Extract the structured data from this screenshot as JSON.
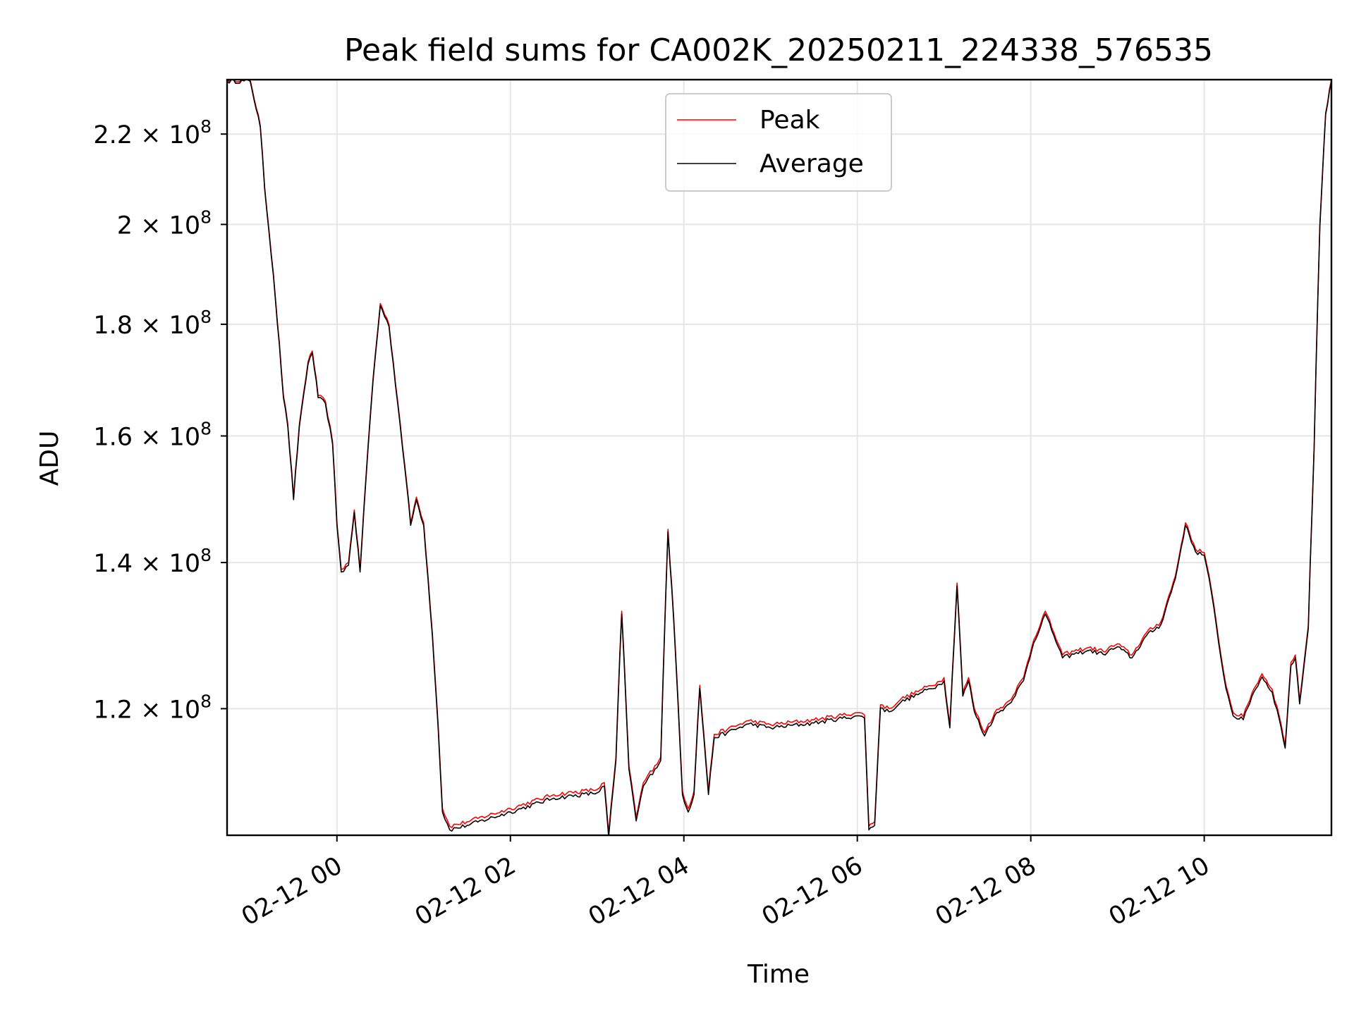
{
  "chart_data": {
    "type": "line",
    "title": "Peak field sums for CA002K_20250211_224338_576535",
    "xlabel": "Time",
    "ylabel": "ADU",
    "yscale": "log",
    "grid": true,
    "legend_placement": "upper-center",
    "xlim": [
      "2025-02-11T22:44",
      "2025-02-12T11:28"
    ],
    "ylim": [
      105000000,
      233000000
    ],
    "x_ticks": [
      {
        "value": "2025-02-12T00:00",
        "label": "02-12 00"
      },
      {
        "value": "2025-02-12T02:00",
        "label": "02-12 02"
      },
      {
        "value": "2025-02-12T04:00",
        "label": "02-12 04"
      },
      {
        "value": "2025-02-12T06:00",
        "label": "02-12 06"
      },
      {
        "value": "2025-02-12T08:00",
        "label": "02-12 08"
      },
      {
        "value": "2025-02-12T10:00",
        "label": "02-12 10"
      }
    ],
    "y_ticks": [
      {
        "value": 120000000,
        "base": "1.2",
        "exp": "8"
      },
      {
        "value": 140000000,
        "base": "1.4",
        "exp": "8"
      },
      {
        "value": 160000000,
        "base": "1.6",
        "exp": "8"
      },
      {
        "value": 180000000,
        "base": "1.8",
        "exp": "8"
      },
      {
        "value": 200000000,
        "base": "2",
        "exp": "8"
      },
      {
        "value": 220000000,
        "base": "2.2",
        "exp": "8"
      }
    ],
    "series": [
      {
        "name": "Peak",
        "color": "#ff0000",
        "offset": 400000,
        "points": [
          [
            "2025-02-11T22:44",
            233000000
          ],
          [
            "2025-02-11T23:00",
            233000000
          ],
          [
            "2025-02-11T23:07",
            222000000
          ],
          [
            "2025-02-11T23:10",
            208000000
          ],
          [
            "2025-02-11T23:16",
            190000000
          ],
          [
            "2025-02-11T23:23",
            167000000
          ],
          [
            "2025-02-11T23:26",
            162000000
          ],
          [
            "2025-02-11T23:30",
            150000000
          ],
          [
            "2025-02-11T23:34",
            162000000
          ],
          [
            "2025-02-11T23:40",
            173000000
          ],
          [
            "2025-02-11T23:43",
            175000000
          ],
          [
            "2025-02-11T23:47",
            167000000
          ],
          [
            "2025-02-11T23:52",
            166000000
          ],
          [
            "2025-02-11T23:57",
            159000000
          ],
          [
            "2025-02-12T00:00",
            146000000
          ],
          [
            "2025-02-12T00:03",
            139000000
          ],
          [
            "2025-02-12T00:08",
            140000000
          ],
          [
            "2025-02-12T00:12",
            148000000
          ],
          [
            "2025-02-12T00:16",
            139000000
          ],
          [
            "2025-02-12T00:20",
            153000000
          ],
          [
            "2025-02-12T00:25",
            170000000
          ],
          [
            "2025-02-12T00:30",
            184000000
          ],
          [
            "2025-02-12T00:36",
            180000000
          ],
          [
            "2025-02-12T00:42",
            166000000
          ],
          [
            "2025-02-12T00:47",
            155000000
          ],
          [
            "2025-02-12T00:51",
            146000000
          ],
          [
            "2025-02-12T00:55",
            150000000
          ],
          [
            "2025-02-12T01:00",
            146000000
          ],
          [
            "2025-02-12T01:06",
            130000000
          ],
          [
            "2025-02-12T01:10",
            118000000
          ],
          [
            "2025-02-12T01:13",
            108000000
          ],
          [
            "2025-02-12T01:18",
            106000000
          ],
          [
            "2025-02-12T01:30",
            106500000
          ],
          [
            "2025-02-12T02:00",
            108000000
          ],
          [
            "2025-02-12T02:30",
            109600000
          ],
          [
            "2025-02-12T03:00",
            110200000
          ],
          [
            "2025-02-12T03:05",
            111000000
          ],
          [
            "2025-02-12T03:08",
            105200000
          ],
          [
            "2025-02-12T03:13",
            114000000
          ],
          [
            "2025-02-12T03:17",
            133000000
          ],
          [
            "2025-02-12T03:22",
            113000000
          ],
          [
            "2025-02-12T03:27",
            107000000
          ],
          [
            "2025-02-12T03:32",
            111000000
          ],
          [
            "2025-02-12T03:40",
            113000000
          ],
          [
            "2025-02-12T03:44",
            114000000
          ],
          [
            "2025-02-12T03:49",
            145000000
          ],
          [
            "2025-02-12T03:53",
            132000000
          ],
          [
            "2025-02-12T03:59",
            110000000
          ],
          [
            "2025-02-12T04:03",
            108000000
          ],
          [
            "2025-02-12T04:07",
            110000000
          ],
          [
            "2025-02-12T04:11",
            123000000
          ],
          [
            "2025-02-12T04:17",
            110000000
          ],
          [
            "2025-02-12T04:21",
            116800000
          ],
          [
            "2025-02-12T04:30",
            117400000
          ],
          [
            "2025-02-12T04:45",
            118500000
          ],
          [
            "2025-02-12T05:00",
            118000000
          ],
          [
            "2025-02-12T05:30",
            118600000
          ],
          [
            "2025-02-12T06:00",
            119500000
          ],
          [
            "2025-02-12T06:05",
            119200000
          ],
          [
            "2025-02-12T06:08",
            106000000
          ],
          [
            "2025-02-12T06:12",
            106500000
          ],
          [
            "2025-02-12T06:16",
            120500000
          ],
          [
            "2025-02-12T06:22",
            120000000
          ],
          [
            "2025-02-12T06:30",
            121200000
          ],
          [
            "2025-02-12T06:45",
            122500000
          ],
          [
            "2025-02-12T06:57",
            123500000
          ],
          [
            "2025-02-12T07:00",
            124000000
          ],
          [
            "2025-02-12T07:04",
            118000000
          ],
          [
            "2025-02-12T07:09",
            137000000
          ],
          [
            "2025-02-12T07:13",
            122000000
          ],
          [
            "2025-02-12T07:17",
            124000000
          ],
          [
            "2025-02-12T07:21",
            120000000
          ],
          [
            "2025-02-12T07:28",
            117000000
          ],
          [
            "2025-02-12T07:35",
            119500000
          ],
          [
            "2025-02-12T07:45",
            121000000
          ],
          [
            "2025-02-12T07:55",
            124000000
          ],
          [
            "2025-02-12T08:02",
            129000000
          ],
          [
            "2025-02-12T08:10",
            133000000
          ],
          [
            "2025-02-12T08:16",
            130000000
          ],
          [
            "2025-02-12T08:22",
            127000000
          ],
          [
            "2025-02-12T08:30",
            127500000
          ],
          [
            "2025-02-12T08:40",
            128000000
          ],
          [
            "2025-02-12T08:50",
            127500000
          ],
          [
            "2025-02-12T09:00",
            128500000
          ],
          [
            "2025-02-12T09:10",
            127000000
          ],
          [
            "2025-02-12T09:20",
            130000000
          ],
          [
            "2025-02-12T09:30",
            131500000
          ],
          [
            "2025-02-12T09:40",
            138000000
          ],
          [
            "2025-02-12T09:47",
            146000000
          ],
          [
            "2025-02-12T09:54",
            142000000
          ],
          [
            "2025-02-12T10:00",
            141500000
          ],
          [
            "2025-02-12T10:05",
            136000000
          ],
          [
            "2025-02-12T10:10",
            129000000
          ],
          [
            "2025-02-12T10:15",
            123000000
          ],
          [
            "2025-02-12T10:20",
            119500000
          ],
          [
            "2025-02-12T10:27",
            119000000
          ],
          [
            "2025-02-12T10:33",
            122000000
          ],
          [
            "2025-02-12T10:40",
            124500000
          ],
          [
            "2025-02-12T10:47",
            122500000
          ],
          [
            "2025-02-12T10:52",
            119000000
          ],
          [
            "2025-02-12T10:56",
            115500000
          ],
          [
            "2025-02-12T11:00",
            126000000
          ],
          [
            "2025-02-12T11:03",
            127000000
          ],
          [
            "2025-02-12T11:06",
            121000000
          ],
          [
            "2025-02-12T11:12",
            131000000
          ],
          [
            "2025-02-12T11:16",
            158000000
          ],
          [
            "2025-02-12T11:20",
            200000000
          ],
          [
            "2025-02-12T11:24",
            225000000
          ],
          [
            "2025-02-12T11:28",
            233000000
          ]
        ]
      },
      {
        "name": "Average",
        "color": "#000000",
        "offset": 0,
        "points": []
      }
    ]
  }
}
